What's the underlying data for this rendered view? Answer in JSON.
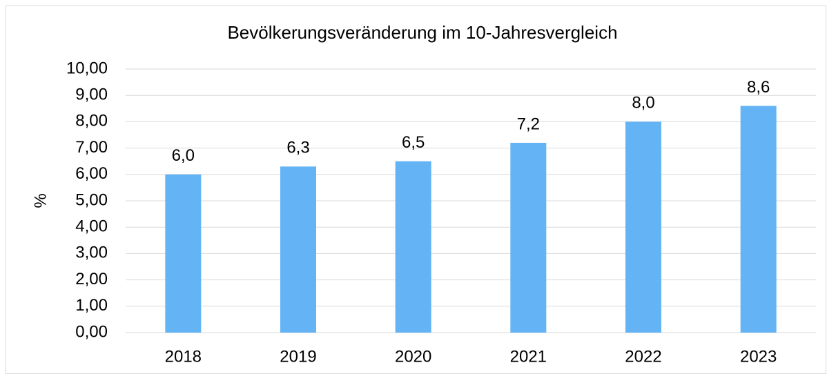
{
  "chart_data": {
    "type": "bar",
    "title": "Bevölkerungsveränderung im 10-Jahresvergleich",
    "y_label": "%",
    "categories": [
      "2018",
      "2019",
      "2020",
      "2021",
      "2022",
      "2023"
    ],
    "values": [
      6.0,
      6.3,
      6.5,
      7.2,
      8.0,
      8.6
    ],
    "value_labels": [
      "6,0",
      "6,3",
      "6,5",
      "7,2",
      "8,0",
      "8,6"
    ],
    "color": "#63b3f5",
    "ylim": [
      0,
      10
    ],
    "yticks": [
      {
        "value": 0,
        "label": "0,00"
      },
      {
        "value": 1,
        "label": "1,00"
      },
      {
        "value": 2,
        "label": "2,00"
      },
      {
        "value": 3,
        "label": "3,00"
      },
      {
        "value": 4,
        "label": "4,00"
      },
      {
        "value": 5,
        "label": "5,00"
      },
      {
        "value": 6,
        "label": "6,00"
      },
      {
        "value": 7,
        "label": "7,00"
      },
      {
        "value": 8,
        "label": "8,00"
      },
      {
        "value": 9,
        "label": "9,00"
      },
      {
        "value": 10,
        "label": "10,00"
      }
    ],
    "grid": true
  }
}
